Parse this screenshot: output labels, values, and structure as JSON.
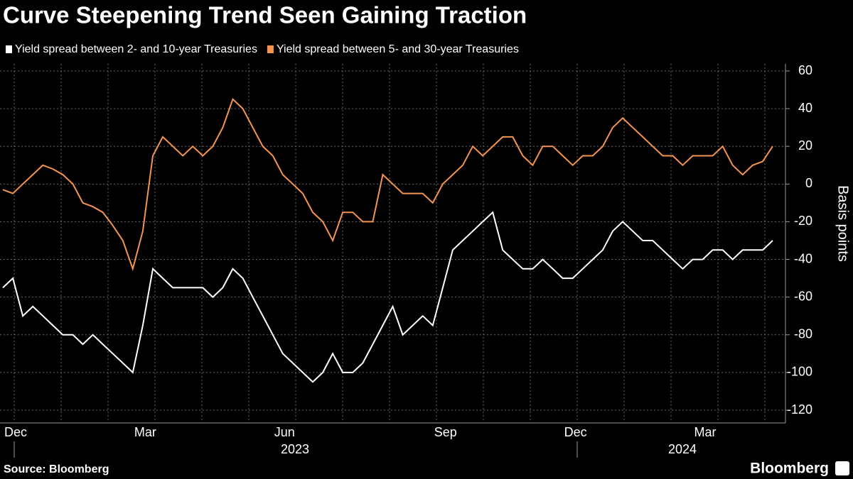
{
  "chart_data": {
    "type": "line",
    "title": "Curve Steepening Trend Seen Gaining Traction",
    "y_label": "Basis points",
    "source": "Source: Bloomberg",
    "brand": "Bloomberg",
    "x_year_labels": [
      "2023",
      "2024"
    ],
    "categories": [
      "Dec",
      null,
      null,
      null,
      null,
      null,
      null,
      null,
      null,
      null,
      null,
      null,
      null,
      "Mar",
      null,
      null,
      null,
      null,
      null,
      null,
      null,
      null,
      null,
      null,
      null,
      null,
      null,
      "Jun",
      null,
      null,
      null,
      null,
      null,
      null,
      null,
      null,
      null,
      null,
      null,
      null,
      null,
      null,
      null,
      "Sep",
      null,
      null,
      null,
      null,
      null,
      null,
      null,
      null,
      null,
      null,
      null,
      null,
      "Dec",
      null,
      null,
      null,
      null,
      null,
      null,
      null,
      null,
      null,
      null,
      null,
      null,
      "Mar",
      null,
      null,
      null,
      null,
      null,
      null,
      null,
      null
    ],
    "series": [
      {
        "name": "Yield spread between 2- and 10-year Treasuries",
        "color": "#ffffff",
        "values": [
          -55,
          -50,
          -70,
          -65,
          -70,
          -75,
          -80,
          -80,
          -85,
          -80,
          -85,
          -90,
          -95,
          -100,
          -75,
          -45,
          -50,
          -55,
          -55,
          -55,
          -55,
          -60,
          -55,
          -45,
          -50,
          -60,
          -70,
          -80,
          -90,
          -95,
          -100,
          -105,
          -100,
          -90,
          -100,
          -100,
          -95,
          -85,
          -75,
          -65,
          -80,
          -75,
          -70,
          -75,
          -55,
          -35,
          -30,
          -25,
          -20,
          -15,
          -35,
          -40,
          -45,
          -45,
          -40,
          -45,
          -50,
          -50,
          -45,
          -40,
          -35,
          -25,
          -20,
          -25,
          -30,
          -30,
          -35,
          -40,
          -45,
          -40,
          -40,
          -35,
          -35,
          -40,
          -35,
          -35,
          -35,
          -30
        ]
      },
      {
        "name": "Yield spread between 5- and 30-year Treasuries",
        "color": "#f4944f",
        "values": [
          -3,
          -5,
          0,
          5,
          10,
          8,
          5,
          0,
          -10,
          -12,
          -15,
          -22,
          -30,
          -45,
          -25,
          15,
          25,
          20,
          15,
          20,
          15,
          20,
          30,
          45,
          40,
          30,
          20,
          15,
          5,
          0,
          -5,
          -15,
          -20,
          -30,
          -15,
          -15,
          -20,
          -20,
          5,
          0,
          -5,
          -5,
          -5,
          -10,
          0,
          5,
          10,
          20,
          15,
          20,
          25,
          25,
          15,
          10,
          20,
          20,
          15,
          10,
          15,
          15,
          20,
          30,
          35,
          30,
          25,
          20,
          15,
          15,
          10,
          15,
          15,
          15,
          20,
          10,
          5,
          10,
          12,
          20
        ]
      }
    ],
    "ylim": [
      -120,
      60
    ],
    "yticks": [
      -120,
      -100,
      -80,
      -60,
      -40,
      -20,
      0,
      20,
      40,
      60
    ],
    "grid": true
  }
}
